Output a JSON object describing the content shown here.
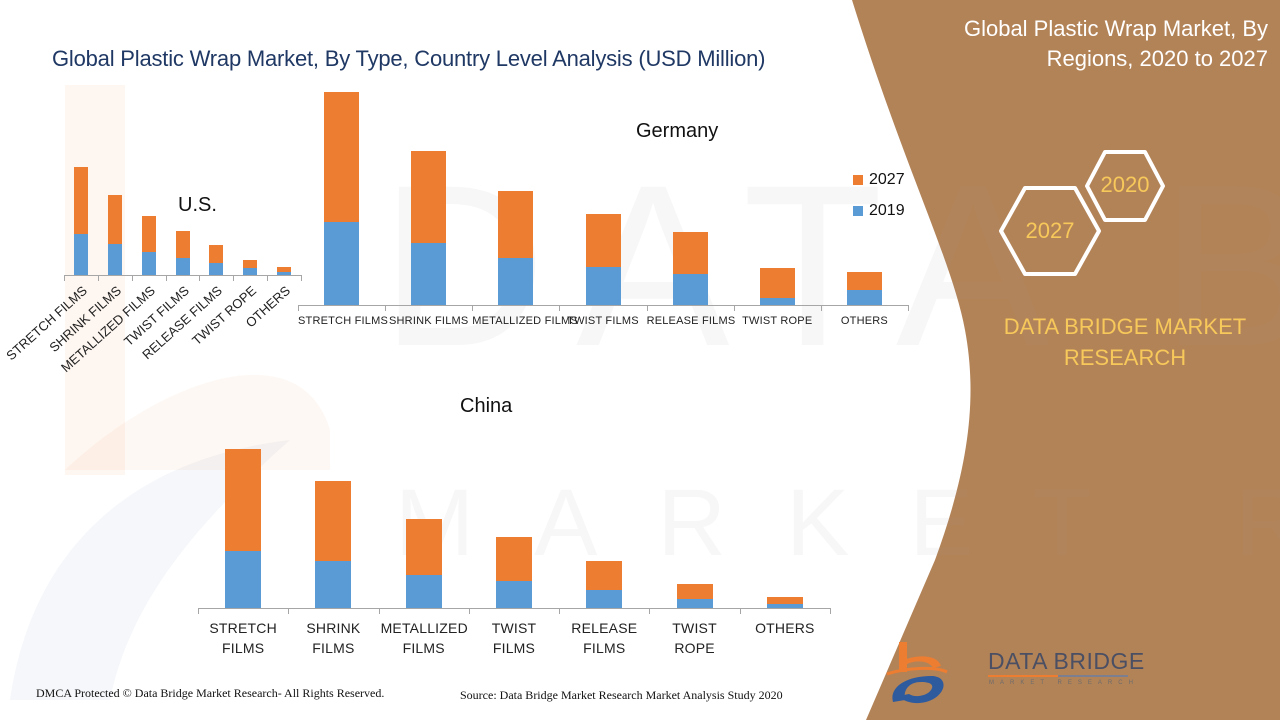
{
  "header": {
    "title": "Global Plastic Wrap Market, By Type, Country Level Analysis (USD Million)"
  },
  "side_panel": {
    "title": "Global Plastic Wrap Market, By Regions, 2020 to 2027",
    "hex_badges": [
      "2020",
      "2027"
    ],
    "brand_text": "DATA BRIDGE MARKET RESEARCH",
    "panel_color": "#b38358",
    "accent_color": "#f7c85a"
  },
  "legend": {
    "items": [
      {
        "label": "2027",
        "color": "#ed7d31"
      },
      {
        "label": "2019",
        "color": "#5b9bd5"
      }
    ]
  },
  "footer": {
    "copyright": "DMCA Protected © Data Bridge Market Research- All Rights Reserved.",
    "source": "Source: Data Bridge Market Research Market Analysis Study 2020"
  },
  "logo": {
    "name": "DATA BRIDGE",
    "subtitle": "MARKET RESEARCH"
  },
  "charts": {
    "us": {
      "title": "U.S."
    },
    "germany": {
      "title": "Germany"
    },
    "china": {
      "title": "China"
    }
  },
  "chart_data": [
    {
      "type": "bar",
      "stacked": true,
      "title": "U.S.",
      "categories": [
        "STRETCH FILMS",
        "SHRINK FILMS",
        "METALLIZED FILMS",
        "TWIST FILMS",
        "RELEASE FILMS",
        "TWIST ROPE",
        "OTHERS"
      ],
      "series": [
        {
          "name": "2019",
          "color": "#5b9bd5",
          "values": [
            41,
            31,
            23,
            17,
            12,
            7,
            3
          ]
        },
        {
          "name": "2027",
          "color": "#ed7d31",
          "values": [
            67,
            49,
            36,
            27,
            18,
            8,
            5
          ]
        }
      ],
      "xlabel": "",
      "ylabel": "",
      "grid": false,
      "note": "Relative pixel heights; no y-axis shown. Stacked totals: 108, 80, 59, 44, 30, 15, 8"
    },
    {
      "type": "bar",
      "stacked": true,
      "title": "Germany",
      "categories": [
        "STRETCH FILMS",
        "SHRINK FILMS",
        "METALLIZED FILMS",
        "TWIST FILMS",
        "RELEASE FILMS",
        "TWIST ROPE",
        "OTHERS"
      ],
      "series": [
        {
          "name": "2019",
          "color": "#5b9bd5",
          "values": [
            83,
            62,
            47,
            38,
            31,
            7,
            15
          ]
        },
        {
          "name": "2027",
          "color": "#ed7d31",
          "values": [
            130,
            92,
            67,
            53,
            42,
            30,
            18
          ]
        }
      ],
      "legend": [
        "2027",
        "2019"
      ],
      "legend_position": "right",
      "xlabel": "",
      "ylabel": "",
      "grid": false,
      "note": "Relative pixel heights; no y-axis shown. Stacked totals: 213, 154, 114, 91, 73, 37, 33"
    },
    {
      "type": "bar",
      "stacked": true,
      "title": "China",
      "categories": [
        "STRETCH FILMS",
        "SHRINK FILMS",
        "METALLIZED FILMS",
        "TWIST FILMS",
        "RELEASE FILMS",
        "TWIST ROPE",
        "OTHERS"
      ],
      "series": [
        {
          "name": "2019",
          "color": "#5b9bd5",
          "values": [
            57,
            47,
            33,
            27,
            18,
            9,
            4
          ]
        },
        {
          "name": "2027",
          "color": "#ed7d31",
          "values": [
            102,
            80,
            56,
            44,
            29,
            15,
            7
          ]
        }
      ],
      "xlabel": "",
      "ylabel": "",
      "grid": false,
      "note": "Relative pixel heights; no y-axis shown. Stacked totals: 159, 127, 89, 71, 47, 24, 11"
    }
  ]
}
